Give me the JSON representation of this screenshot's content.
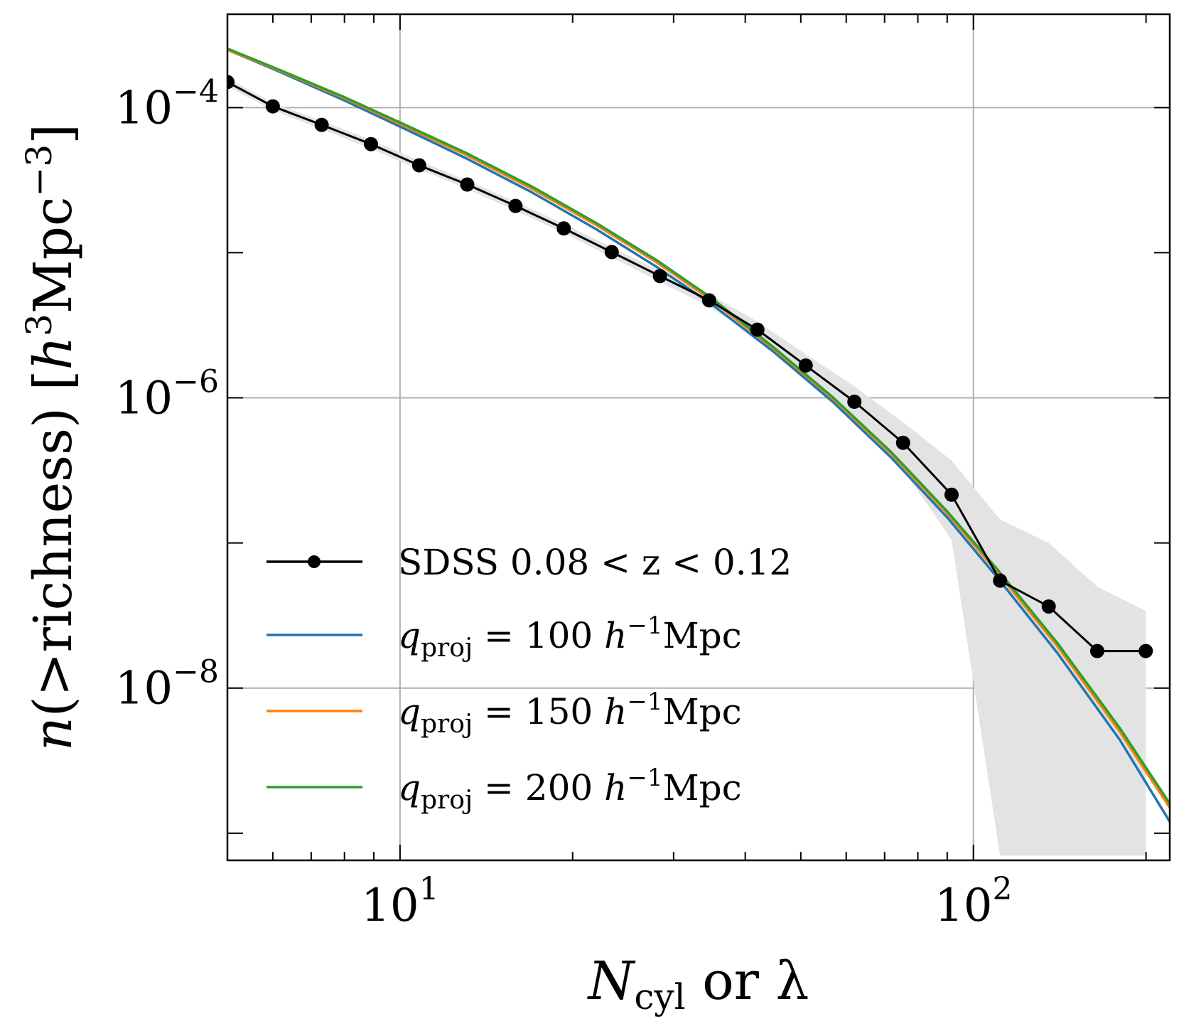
{
  "chart_data": {
    "type": "line",
    "title": "",
    "xlabel": {
      "main": "N",
      "sub": "cyl",
      "rest": " or λ"
    },
    "ylabel": {
      "main": "n",
      "open": "(",
      "gt": ">",
      "word": "richness",
      "close": ")",
      "unit_open": " [",
      "h": "h",
      "h_exp": "3",
      "unit": "Mpc",
      "unit_exp": "−3",
      "unit_close": "]"
    },
    "xscale": "log",
    "yscale": "log",
    "xlim": [
      5.0,
      220.0
    ],
    "ylim": [
      6.5e-10,
      0.00044
    ],
    "grid": true,
    "legend_position": "center-left",
    "x_ticks": [
      {
        "value": 10,
        "base": "10",
        "exp": "1"
      },
      {
        "value": 100,
        "base": "10",
        "exp": "2"
      }
    ],
    "y_ticks": [
      {
        "value": 0.0001,
        "base": "10",
        "exp": "−4"
      },
      {
        "value": 1e-06,
        "base": "10",
        "exp": "−6"
      },
      {
        "value": 1e-08,
        "base": "10",
        "exp": "−8"
      }
    ],
    "series": [
      {
        "name": "SDSS 0.08 < z < 0.12",
        "label_parts": {
          "text": "SDSS 0.08 < z < 0.12"
        },
        "color": "#000000",
        "marker": "circle",
        "x": [
          5.0,
          6.0,
          7.3,
          8.9,
          10.8,
          13.1,
          15.9,
          19.3,
          23.4,
          28.4,
          34.6,
          42.0,
          51.0,
          62.0,
          75.4,
          91.6,
          111.3,
          135.3,
          164.4,
          199.8
        ],
        "y": [
          0.00015,
          0.000102,
          7.6e-05,
          5.6e-05,
          4e-05,
          2.95e-05,
          2.1e-05,
          1.47e-05,
          1.01e-05,
          6.9e-06,
          4.7e-06,
          2.95e-06,
          1.67e-06,
          9.4e-07,
          4.9e-07,
          2.15e-07,
          5.5e-08,
          3.65e-08,
          1.8e-08,
          1.8e-08
        ],
        "band_lower": [
          0.00014,
          9.6e-05,
          7.1e-05,
          5.2e-05,
          3.75e-05,
          2.75e-05,
          1.95e-05,
          1.37e-05,
          9.3e-06,
          6.3e-06,
          4.25e-06,
          2.6e-06,
          1.4e-06,
          7.3e-07,
          3.2e-07,
          1.05e-07,
          7e-10,
          7e-10,
          7e-10,
          7e-10
        ],
        "band_upper": [
          0.00016,
          0.000108,
          8.1e-05,
          6e-05,
          4.3e-05,
          3.15e-05,
          2.25e-05,
          1.58e-05,
          1.09e-05,
          7.5e-06,
          5.2e-06,
          3.35e-06,
          2e-06,
          1.2e-06,
          6.8e-07,
          3.7e-07,
          1.45e-07,
          1e-07,
          5e-08,
          3.4e-08
        ]
      },
      {
        "name": "q_proj = 100 h^-1 Mpc",
        "label_parts": {
          "q": "q",
          "sub": "proj",
          "eq": " = 100 ",
          "h": "h",
          "exp": "−1",
          "unit": "Mpc"
        },
        "color": "#1f77b4",
        "marker": "none",
        "x": [
          5.0,
          6.0,
          8.0,
          10.0,
          13.0,
          17.0,
          22.0,
          28.0,
          35.0,
          45.0,
          57.0,
          72.0,
          90.0,
          110.0,
          140.0,
          180.0,
          220.0
        ],
        "y": [
          0.00025,
          0.000185,
          0.000112,
          7.4e-05,
          4.5e-05,
          2.6e-05,
          1.45e-05,
          8e-06,
          4.4e-06,
          2.05e-06,
          9.3e-07,
          3.85e-07,
          1.5e-07,
          5.8e-08,
          1.75e-08,
          4.4e-09,
          1.2e-09
        ]
      },
      {
        "name": "q_proj = 150 h^-1 Mpc",
        "label_parts": {
          "q": "q",
          "sub": "proj",
          "eq": " = 150 ",
          "h": "h",
          "exp": "−1",
          "unit": "Mpc"
        },
        "color": "#ff7f0e",
        "marker": "none",
        "x": [
          5.0,
          6.0,
          8.0,
          10.0,
          13.0,
          17.0,
          22.0,
          28.0,
          35.0,
          45.0,
          57.0,
          72.0,
          90.0,
          110.0,
          140.0,
          180.0,
          220.0
        ],
        "y": [
          0.00025,
          0.000188,
          0.000116,
          7.7e-05,
          4.75e-05,
          2.75e-05,
          1.55e-05,
          8.6e-06,
          4.7e-06,
          2.15e-06,
          9.8e-07,
          4.1e-07,
          1.6e-07,
          6.3e-08,
          1.95e-08,
          5e-09,
          1.5e-09
        ]
      },
      {
        "name": "q_proj = 200 h^-1 Mpc",
        "label_parts": {
          "q": "q",
          "sub": "proj",
          "eq": " = 200 ",
          "h": "h",
          "exp": "−1",
          "unit": "Mpc"
        },
        "color": "#2ca02c",
        "marker": "none",
        "x": [
          5.0,
          6.0,
          8.0,
          10.0,
          13.0,
          17.0,
          22.0,
          28.0,
          35.0,
          45.0,
          57.0,
          72.0,
          90.0,
          110.0,
          140.0,
          180.0,
          220.0
        ],
        "y": [
          0.000255,
          0.00019,
          0.000118,
          7.9e-05,
          4.9e-05,
          2.85e-05,
          1.6e-05,
          8.9e-06,
          4.85e-06,
          2.2e-06,
          1e-06,
          4.2e-07,
          1.65e-07,
          6.6e-08,
          2.05e-08,
          5.3e-09,
          1.6e-09
        ]
      }
    ]
  }
}
